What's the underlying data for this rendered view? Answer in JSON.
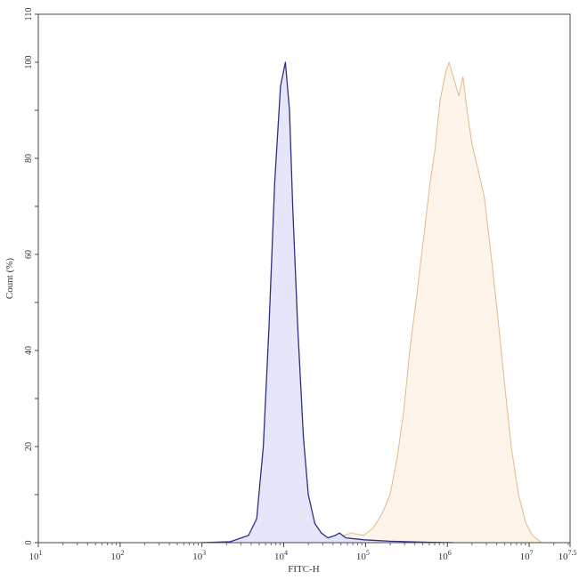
{
  "chart_data": {
    "type": "area",
    "title": "",
    "xlabel": "FITC-H",
    "ylabel": "Count (%)",
    "x_scale": "log10",
    "xlim_exponent": [
      1,
      7.5
    ],
    "ylim": [
      0,
      110
    ],
    "x_tick_labels": [
      {
        "base": "10",
        "exp": "1"
      },
      {
        "base": "10",
        "exp": "2"
      },
      {
        "base": "10",
        "exp": "3"
      },
      {
        "base": "10",
        "exp": "4"
      },
      {
        "base": "10",
        "exp": "5"
      },
      {
        "base": "10",
        "exp": "6"
      },
      {
        "base": "10",
        "exp": "7"
      },
      {
        "base": "10",
        "exp": "7.5"
      }
    ],
    "y_ticks": [
      0,
      20,
      40,
      60,
      80,
      100,
      110
    ],
    "grid": false,
    "series": [
      {
        "color": "#2e2e86",
        "fill": "#e6e6fb",
        "log10_x": [
          3.0,
          3.35,
          3.57,
          3.67,
          3.75,
          3.82,
          3.89,
          3.96,
          4.02,
          4.07,
          4.11,
          4.17,
          4.24,
          4.3,
          4.38,
          4.46,
          4.54,
          4.63,
          4.68,
          4.76,
          4.98,
          5.3,
          5.74,
          6.07
        ],
        "y": [
          0,
          0.2,
          1.5,
          5,
          20,
          45,
          75,
          95,
          100,
          90,
          70,
          45,
          22,
          10,
          4,
          2,
          1,
          1.5,
          2,
          1,
          0.6,
          0.3,
          0.1,
          0
        ]
      },
      {
        "color": "#e2b98c",
        "fill": "#fff4ea",
        "log10_x": [
          4.22,
          4.65,
          4.82,
          4.98,
          5.09,
          5.2,
          5.3,
          5.39,
          5.47,
          5.54,
          5.63,
          5.72,
          5.79,
          5.85,
          5.91,
          5.98,
          6.02,
          6.09,
          6.14,
          6.19,
          6.24,
          6.3,
          6.37,
          6.45,
          6.52,
          6.61,
          6.7,
          6.78,
          6.87,
          6.96,
          7.04,
          7.15
        ],
        "y": [
          0.2,
          1,
          2,
          1.5,
          3,
          6,
          10,
          18,
          28,
          40,
          52,
          65,
          75,
          82,
          92,
          98,
          100,
          96,
          93,
          97,
          90,
          83,
          78,
          72,
          62,
          48,
          33,
          20,
          10,
          4,
          1.5,
          0
        ]
      }
    ]
  }
}
